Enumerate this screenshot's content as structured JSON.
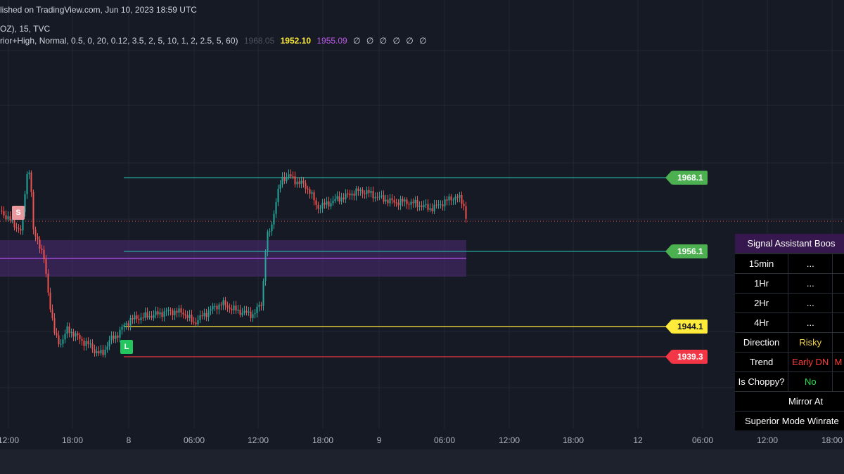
{
  "header": {
    "published": "lished on TradingView.com, Jun 10, 2023 18:59 UTC",
    "symbol": "OZ), 15, TVC",
    "indicator_params": "rior+High, Normal, 0.5, 0, 20, 0.12, 3.5, 2, 5, 10, 1, 2, 2.5, 5, 60)",
    "dim_value": "1968.05",
    "yellow_value": "1952.10",
    "purple_value": "1955.09",
    "zeros": [
      "∅",
      "∅",
      "∅",
      "∅",
      "∅",
      "∅"
    ]
  },
  "levels": [
    {
      "label": "1968.1",
      "color": "#4caf50"
    },
    {
      "label": "1956.1",
      "color": "#4caf50"
    },
    {
      "label": "1944.1",
      "color": "#ffeb3b"
    },
    {
      "label": "1939.3",
      "color": "#f23645"
    }
  ],
  "markers": {
    "sell": "S",
    "long": "L"
  },
  "time_axis": [
    "12:00",
    "18:00",
    "8",
    "06:00",
    "12:00",
    "18:00",
    "9",
    "06:00",
    "12:00",
    "18:00",
    "12",
    "06:00",
    "12:00",
    "18:00"
  ],
  "colors": {
    "background": "#161a25",
    "up": "#26a69a",
    "down": "#ef5350",
    "zone": "#4a2a6e",
    "panel_title": "#36184f"
  },
  "panel": {
    "title": "Signal Assistant Boos",
    "rows": [
      {
        "label": "15min",
        "value": "...",
        "extra": ""
      },
      {
        "label": "1Hr",
        "value": "...",
        "extra": ""
      },
      {
        "label": "2Hr",
        "value": "...",
        "extra": ""
      },
      {
        "label": "4Hr",
        "value": "...",
        "extra": ""
      },
      {
        "label": "Direction",
        "value": "Risky",
        "extra": ""
      },
      {
        "label": "Trend",
        "value": "Early DN",
        "extra": "M"
      },
      {
        "label": "Is Choppy?",
        "value": "No",
        "extra": ""
      }
    ],
    "mirror_label": "Mirror At",
    "winrate_label": "Superior Mode Winrate"
  }
}
